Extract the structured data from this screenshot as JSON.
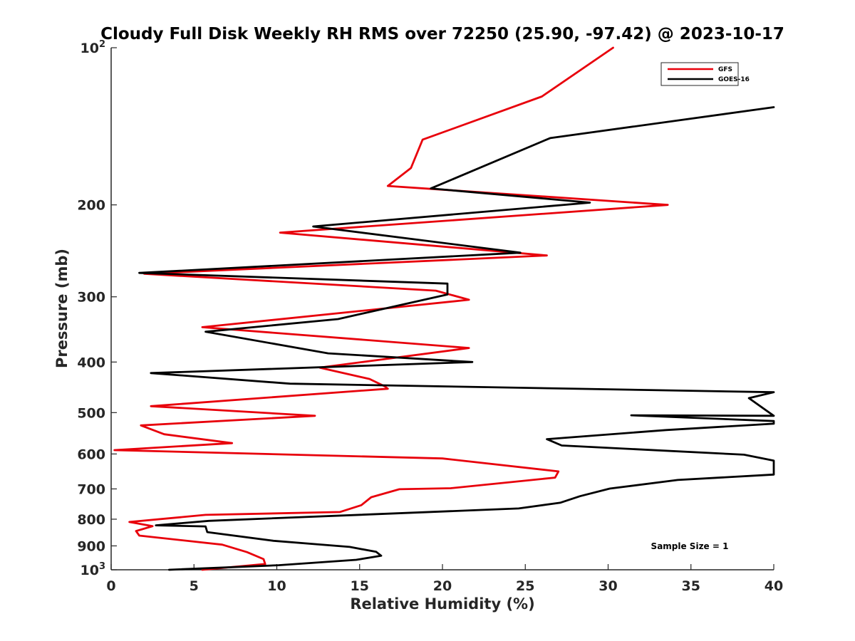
{
  "chart_data": {
    "type": "line",
    "title": "Cloudy Full Disk Weekly RH RMS over 72250 (25.90, -97.42) @ 2023-10-17",
    "xlabel": "Relative Humidity (%)",
    "ylabel": "Pressure (mb)",
    "xlim": [
      0,
      40
    ],
    "ylim": [
      100,
      1000
    ],
    "yscale": "log",
    "y_reversed": true,
    "grid": false,
    "legend_position": "top-right",
    "x_ticks": [
      "0",
      "5",
      "10",
      "15",
      "20",
      "25",
      "30",
      "35",
      "40"
    ],
    "x_tick_values": [
      0,
      5,
      10,
      15,
      20,
      25,
      30,
      35,
      40
    ],
    "y_ticks": [
      {
        "value": 100,
        "base": "10",
        "exp": "2"
      },
      {
        "value": 200,
        "base": "200",
        "exp": ""
      },
      {
        "value": 300,
        "base": "300",
        "exp": ""
      },
      {
        "value": 400,
        "base": "400",
        "exp": ""
      },
      {
        "value": 500,
        "base": "500",
        "exp": ""
      },
      {
        "value": 600,
        "base": "600",
        "exp": ""
      },
      {
        "value": 700,
        "base": "700",
        "exp": ""
      },
      {
        "value": 800,
        "base": "800",
        "exp": ""
      },
      {
        "value": 900,
        "base": "900",
        "exp": ""
      },
      {
        "value": 1000,
        "base": "10",
        "exp": "3"
      }
    ],
    "annotation": "Sample Size = 1",
    "series": [
      {
        "name": "GFS",
        "color": "#e8000b",
        "x": [
          30.3,
          26.0,
          18.8,
          18.1,
          16.7,
          33.6,
          10.2,
          26.3,
          2.0,
          19.6,
          21.6,
          5.5,
          21.6,
          12.6,
          15.6,
          16.5,
          16.7,
          2.4,
          12.3,
          1.8,
          3.2,
          7.3,
          0.2,
          20.0,
          27.0,
          26.8,
          20.5,
          17.4,
          15.7,
          15.1,
          13.8,
          5.7,
          1.1,
          2.5,
          1.5,
          1.7,
          6.7,
          8.2,
          9.2,
          9.3,
          5.5
        ],
        "y": [
          100,
          124,
          150,
          170,
          184,
          200,
          226,
          250,
          271,
          292,
          304,
          343,
          376,
          410,
          431,
          445,
          450,
          486,
          507,
          529,
          550,
          572,
          590,
          612,
          648,
          666,
          698,
          701,
          726,
          752,
          775,
          785,
          810,
          825,
          843,
          860,
          895,
          925,
          954,
          975,
          1000
        ]
      },
      {
        "name": "GOES-16",
        "color": "#000000",
        "x": [
          40.0,
          26.5,
          19.3,
          28.9,
          12.2,
          24.7,
          1.7,
          20.3,
          20.3,
          13.7,
          5.7,
          13.1,
          21.8,
          2.4,
          10.8,
          40.0,
          38.5,
          40.0,
          31.4,
          40.0,
          40.0,
          33.5,
          26.3,
          27.2,
          38.2,
          40.0,
          40.0,
          34.2,
          30.1,
          28.3,
          27.1,
          24.6,
          5.9,
          2.7,
          5.7,
          5.8,
          9.8,
          14.4,
          16.0,
          16.3,
          14.8,
          10.1,
          3.5
        ],
        "y": [
          130,
          149,
          186,
          198,
          220,
          247,
          270,
          283,
          297,
          331,
          350,
          385,
          400,
          420,
          440,
          457,
          469,
          507,
          506,
          519,
          525,
          540,
          562,
          578,
          602,
          618,
          657,
          673,
          699,
          723,
          744,
          763,
          806,
          822,
          826,
          847,
          880,
          904,
          924,
          940,
          957,
          980,
          1000
        ]
      }
    ]
  }
}
